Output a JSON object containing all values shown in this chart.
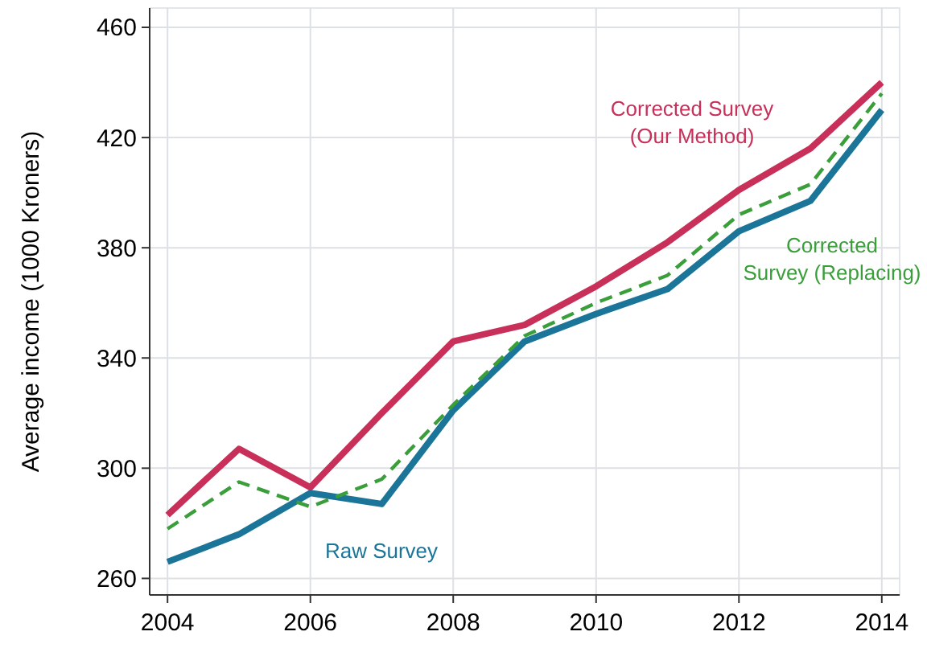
{
  "chart_data": {
    "type": "line",
    "ylabel": "Average income (1000 Kroners)",
    "x": [
      2004,
      2005,
      2006,
      2007,
      2008,
      2009,
      2010,
      2011,
      2012,
      2013,
      2014
    ],
    "xlim": [
      2003.75,
      2014.25
    ],
    "xticks": [
      2004,
      2006,
      2008,
      2010,
      2012,
      2014
    ],
    "ylim": [
      254,
      467
    ],
    "yticks": [
      260,
      300,
      340,
      380,
      420,
      460
    ],
    "grid": true,
    "series": [
      {
        "name": "Corrected Survey\n(Our Method)",
        "color": "#c8305a",
        "line_style": "solid",
        "values": [
          283,
          307,
          293,
          320,
          346,
          352,
          366,
          382,
          401,
          416,
          440
        ]
      },
      {
        "name": "Raw Survey",
        "color": "#1a7599",
        "line_style": "solid",
        "values": [
          266,
          276,
          291,
          287,
          321,
          346,
          356,
          365,
          386,
          397,
          430
        ]
      },
      {
        "name": "Corrected\nSurvey (Replacing)",
        "color": "#3a9e3a",
        "line_style": "dashed",
        "values": [
          278,
          295,
          286,
          296,
          323,
          348,
          360,
          370,
          392,
          403,
          436
        ]
      }
    ]
  }
}
